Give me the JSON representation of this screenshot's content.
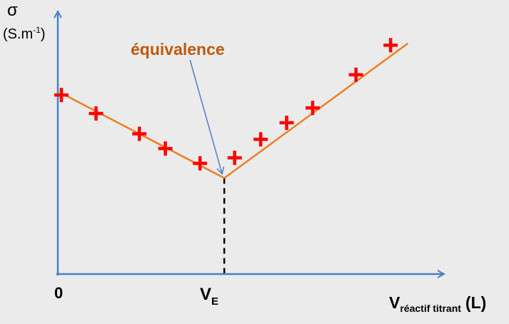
{
  "chart_data": {
    "type": "line",
    "title": "",
    "ylabel": "σ",
    "ylabel_unit": "(S.m-1)",
    "ylabel_unit_parts": {
      "open": "(S.m",
      "exp": "-1",
      "close": ")"
    },
    "xlabel": {
      "main": "V",
      "sub": "réactif titrant",
      "unit": "(L)"
    },
    "xticks": {
      "origin": "0",
      "ve_main": "V",
      "ve_sub": "E"
    },
    "annotation": "équivalence",
    "equivalence": {
      "x": 9.4,
      "y": 5.2
    },
    "xlim": [
      0,
      22
    ],
    "ylim": [
      0,
      14
    ],
    "fit_lines": [
      {
        "x": [
          0,
          9.4
        ],
        "y": [
          9.8,
          5.2
        ]
      },
      {
        "x": [
          9.4,
          20
        ],
        "y": [
          5.2,
          12.5
        ]
      }
    ],
    "series": [
      {
        "marker": "plus",
        "x": [
          0,
          2,
          4.5,
          6,
          8,
          10,
          11.5,
          13,
          14.5,
          17,
          19
        ],
        "y": [
          9.7,
          8.7,
          7.6,
          6.8,
          6.0,
          6.3,
          7.3,
          8.2,
          9.0,
          10.8,
          12.4
        ]
      }
    ],
    "colors": {
      "background": "#ebebeb",
      "axis": "#4a7fc7",
      "line": "#ee7d22",
      "marker": "#ff0000",
      "annotation": "#c0580c",
      "arrow": "#4a7fc7",
      "dashed": "#000000"
    }
  }
}
